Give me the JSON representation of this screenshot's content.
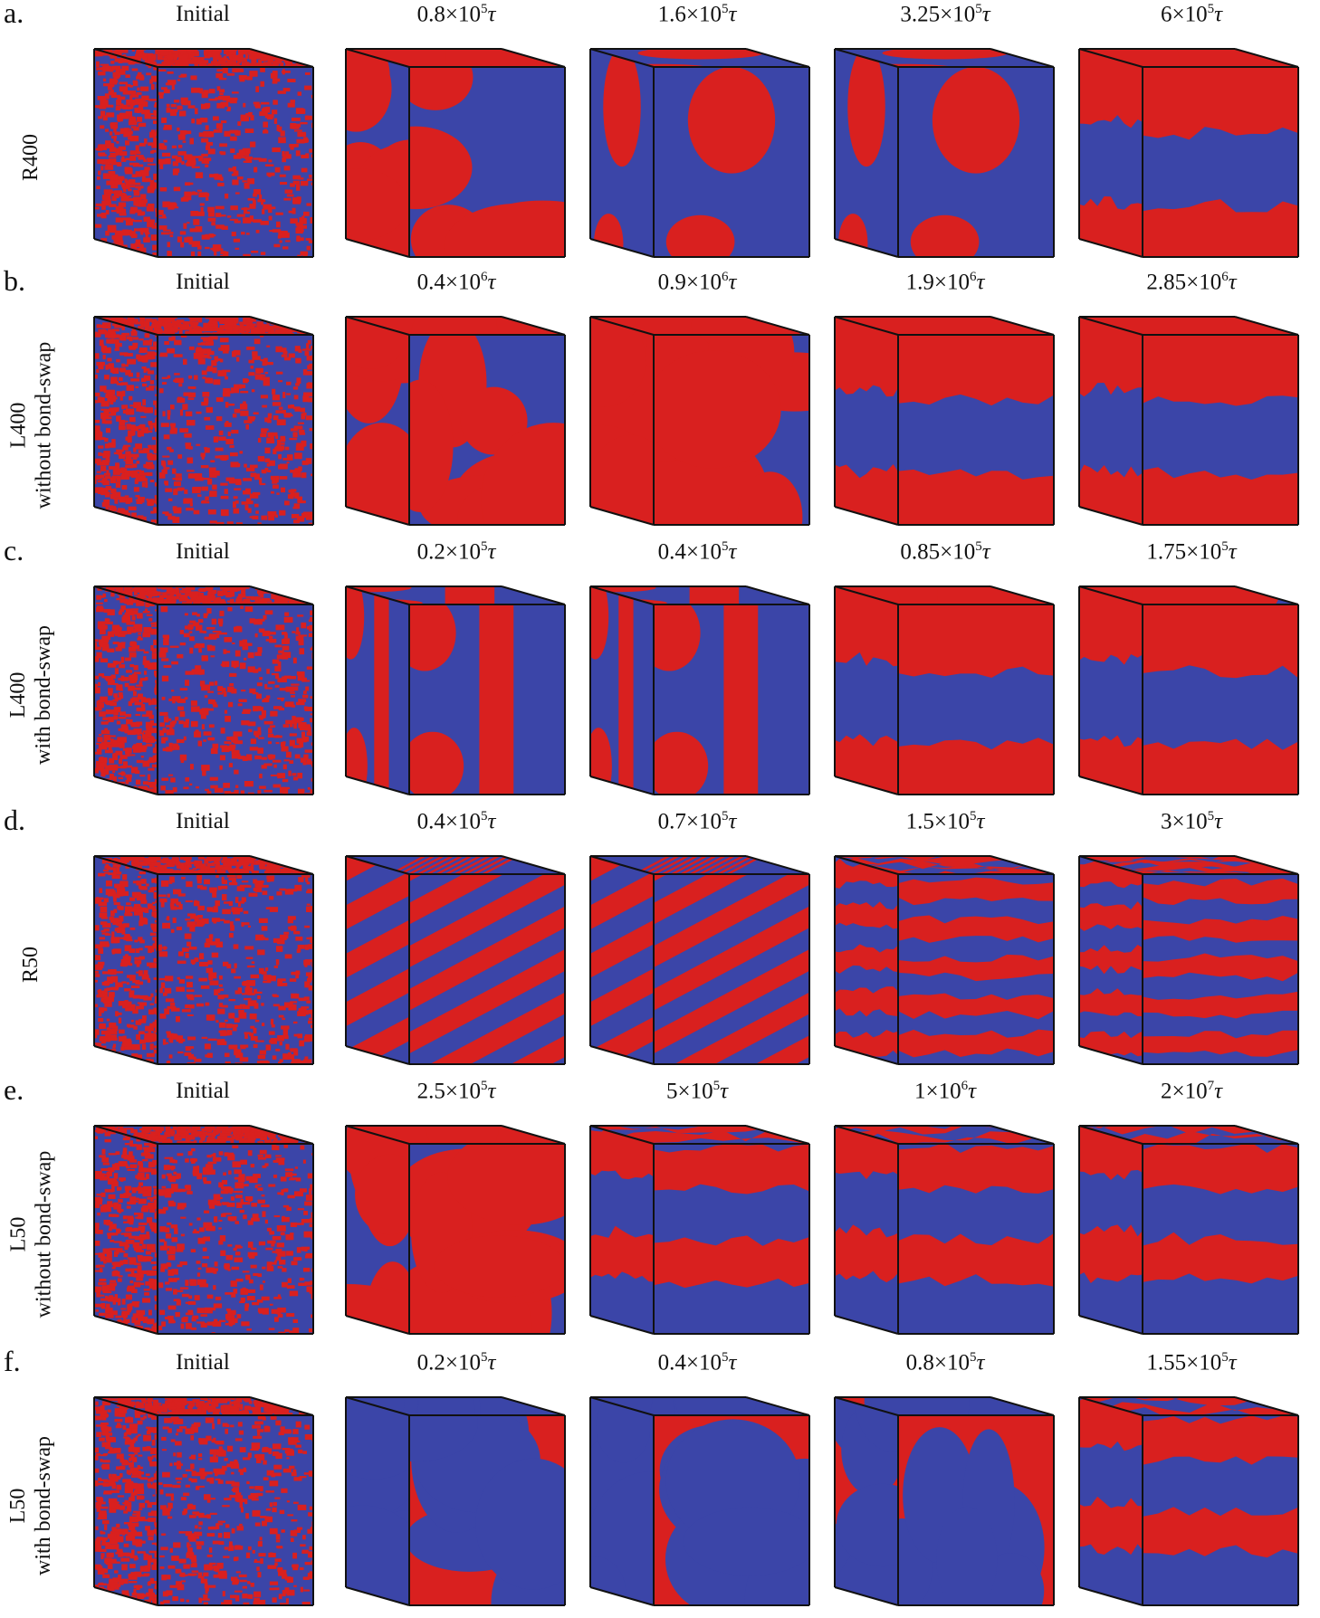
{
  "colors": {
    "blue": "#3b45a8",
    "red": "#d9201f",
    "edge": "#111111"
  },
  "rows": [
    {
      "letter": "a.",
      "label": [
        "R400"
      ],
      "frames": [
        {
          "label": "Initial",
          "pattern": "mixed"
        },
        {
          "label": "0.8×10^5 τ",
          "mantissa": "0.8",
          "exp": "5",
          "pattern": "blobs-red"
        },
        {
          "label": "1.6×10^5 τ",
          "mantissa": "1.6",
          "exp": "5",
          "pattern": "blob-center"
        },
        {
          "label": "3.25×10^5 τ",
          "mantissa": "3.25",
          "exp": "5",
          "pattern": "blob-center"
        },
        {
          "label": "6×10^5 τ",
          "mantissa": "6",
          "exp": "5",
          "pattern": "lamellae-2"
        }
      ]
    },
    {
      "letter": "b.",
      "label": [
        "L400",
        "without bond-swap"
      ],
      "frames": [
        {
          "label": "Initial",
          "pattern": "mixed"
        },
        {
          "label": "0.4×10^6 τ",
          "mantissa": "0.4",
          "exp": "6",
          "pattern": "blobs-red"
        },
        {
          "label": "0.9×10^6 τ",
          "mantissa": "0.9",
          "exp": "6",
          "pattern": "blobs-red"
        },
        {
          "label": "1.9×10^6 τ",
          "mantissa": "1.9",
          "exp": "6",
          "pattern": "lamellae-2"
        },
        {
          "label": "2.85×10^6 τ",
          "mantissa": "2.85",
          "exp": "6",
          "pattern": "lamellae-2"
        }
      ]
    },
    {
      "letter": "c.",
      "label": [
        "L400",
        "with bond-swap"
      ],
      "frames": [
        {
          "label": "Initial",
          "pattern": "mixed"
        },
        {
          "label": "0.2×10^5 τ",
          "mantissa": "0.2",
          "exp": "5",
          "pattern": "vertical"
        },
        {
          "label": "0.4×10^5 τ",
          "mantissa": "0.4",
          "exp": "5",
          "pattern": "vertical"
        },
        {
          "label": "0.85×10^5 τ",
          "mantissa": "0.85",
          "exp": "5",
          "pattern": "lamellae-2"
        },
        {
          "label": "1.75×10^5 τ",
          "mantissa": "1.75",
          "exp": "5",
          "pattern": "lamellae-2"
        }
      ]
    },
    {
      "letter": "d.",
      "label": [
        "R50"
      ],
      "frames": [
        {
          "label": "Initial",
          "pattern": "mixed"
        },
        {
          "label": "0.4×10^5 τ",
          "mantissa": "0.4",
          "exp": "5",
          "pattern": "stripes-tilt"
        },
        {
          "label": "0.7×10^5 τ",
          "mantissa": "0.7",
          "exp": "5",
          "pattern": "stripes-tilt"
        },
        {
          "label": "1.5×10^5 τ",
          "mantissa": "1.5",
          "exp": "5",
          "pattern": "stripes"
        },
        {
          "label": "3×10^5 τ",
          "mantissa": "3",
          "exp": "5",
          "pattern": "stripes"
        }
      ]
    },
    {
      "letter": "e.",
      "label": [
        "L50",
        "without bond-swap"
      ],
      "frames": [
        {
          "label": "Initial",
          "pattern": "mixed"
        },
        {
          "label": "2.5×10^5 τ",
          "mantissa": "2.5",
          "exp": "5",
          "pattern": "blobs-red"
        },
        {
          "label": "5×10^5 τ",
          "mantissa": "5",
          "exp": "5",
          "pattern": "lamellae-3"
        },
        {
          "label": "1×10^6 τ",
          "mantissa": "1",
          "exp": "6",
          "pattern": "lamellae-3"
        },
        {
          "label": "2×10^7 τ",
          "mantissa": "2",
          "exp": "7",
          "pattern": "lamellae-3"
        }
      ]
    },
    {
      "letter": "f.",
      "label": [
        "L50",
        "with bond-swap"
      ],
      "frames": [
        {
          "label": "Initial",
          "pattern": "mixed"
        },
        {
          "label": "0.2×10^5 τ",
          "mantissa": "0.2",
          "exp": "5",
          "pattern": "blobs-blue"
        },
        {
          "label": "0.4×10^5 τ",
          "mantissa": "0.4",
          "exp": "5",
          "pattern": "blobs-blue"
        },
        {
          "label": "0.8×10^5 τ",
          "mantissa": "0.8",
          "exp": "5",
          "pattern": "blobs-blue"
        },
        {
          "label": "1.55×10^5 τ",
          "mantissa": "1.55",
          "exp": "5",
          "pattern": "lamellae-3"
        }
      ]
    }
  ]
}
